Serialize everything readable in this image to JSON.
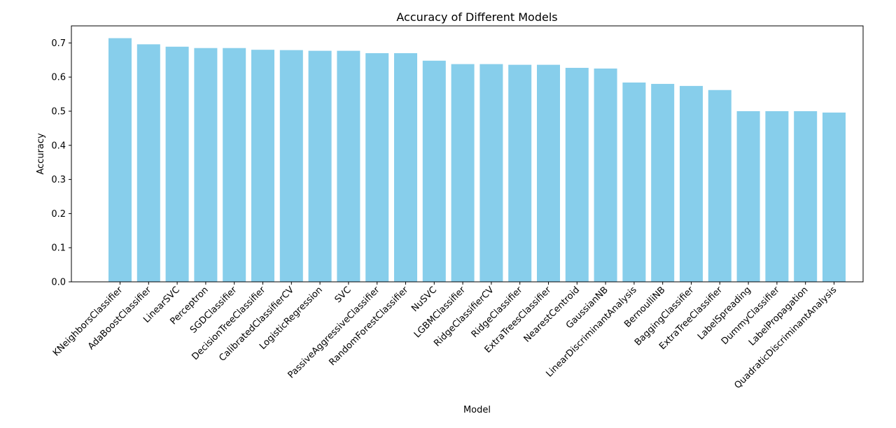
{
  "chart_data": {
    "type": "bar",
    "title": "Accuracy of Different Models",
    "xlabel": "Model",
    "ylabel": "Accuracy",
    "ylim": [
      0,
      0.75
    ],
    "yticks": [
      "0.0",
      "0.1",
      "0.2",
      "0.3",
      "0.4",
      "0.5",
      "0.6",
      "0.7"
    ],
    "grid": false,
    "bar_color": "#87CEEB",
    "categories": [
      "KNeighborsClassifier",
      "AdaBoostClassifier",
      "LinearSVC",
      "Perceptron",
      "SGDClassifier",
      "DecisionTreeClassifier",
      "CalibratedClassifierCV",
      "LogisticRegression",
      "SVC",
      "PassiveAggressiveClassifier",
      "RandomForestClassifier",
      "NuSVC",
      "LGBMClassifier",
      "RidgeClassifierCV",
      "RidgeClassifier",
      "ExtraTreesClassifier",
      "NearestCentroid",
      "GaussianNB",
      "LinearDiscriminantAnalysis",
      "BernoulliNB",
      "BaggingClassifier",
      "ExtraTreeClassifier",
      "LabelSpreading",
      "DummyClassifier",
      "LabelPropagation",
      "QuadraticDiscriminantAnalysis"
    ],
    "values": [
      0.714,
      0.696,
      0.689,
      0.685,
      0.685,
      0.68,
      0.679,
      0.677,
      0.677,
      0.67,
      0.67,
      0.648,
      0.638,
      0.638,
      0.636,
      0.636,
      0.627,
      0.625,
      0.584,
      0.58,
      0.574,
      0.562,
      0.5,
      0.5,
      0.5,
      0.496
    ]
  }
}
